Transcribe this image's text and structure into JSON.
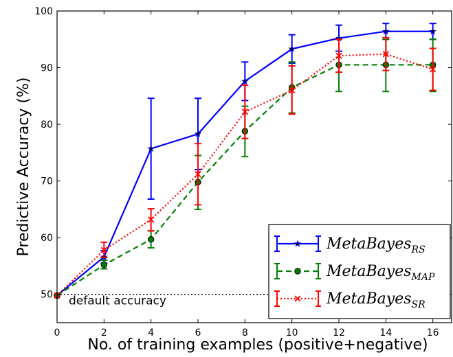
{
  "chart_data": {
    "type": "line",
    "xlabel": "No. of training examples (positive+negative)",
    "ylabel": "Predictive Accuracy (%)",
    "xlim": [
      0,
      16.8
    ],
    "ylim": [
      45,
      100
    ],
    "xticks": [
      0,
      2,
      4,
      6,
      8,
      10,
      12,
      14,
      16
    ],
    "yticks": [
      50,
      60,
      70,
      80,
      90,
      100
    ],
    "grid": false,
    "legend_position": "lower-right",
    "x": [
      0,
      2,
      4,
      6,
      8,
      10,
      12,
      14,
      16
    ],
    "series": [
      {
        "name_main": "MetaBayes",
        "name_sub": "RS",
        "color": "#0000ff",
        "style": "solid",
        "marker": "star",
        "values": [
          49.8,
          56.6,
          75.7,
          78.3,
          87.6,
          93.3,
          95.2,
          96.4,
          96.4
        ],
        "err_low": [
          49.8,
          55.5,
          66.8,
          72.0,
          84.2,
          90.8,
          92.9,
          95.0,
          95.0
        ],
        "err_high": [
          49.8,
          57.7,
          84.6,
          84.6,
          91.0,
          95.8,
          97.5,
          97.8,
          97.8
        ]
      },
      {
        "name_main": "MetaBayes",
        "name_sub": "MAP",
        "color": "#008000",
        "style": "dashed",
        "marker": "circle",
        "values": [
          49.8,
          55.2,
          59.7,
          69.8,
          78.8,
          86.5,
          90.5,
          90.5,
          90.5
        ],
        "err_low": [
          49.8,
          54.5,
          58.2,
          65.0,
          74.3,
          82.0,
          85.8,
          85.8,
          85.8
        ],
        "err_high": [
          49.8,
          56.0,
          61.2,
          74.5,
          83.2,
          91.0,
          95.0,
          95.0,
          95.0
        ]
      },
      {
        "name_main": "MetaBayes",
        "name_sub": "SR",
        "color": "#ff0000",
        "style": "dotted",
        "marker": "x",
        "values": [
          49.8,
          57.8,
          63.2,
          71.2,
          82.2,
          86.0,
          92.1,
          92.4,
          89.7
        ],
        "err_low": [
          49.8,
          56.5,
          61.2,
          65.8,
          77.5,
          81.8,
          89.2,
          89.5,
          86.0
        ],
        "err_high": [
          49.8,
          59.2,
          65.1,
          76.6,
          86.9,
          90.3,
          95.0,
          95.3,
          93.4
        ]
      }
    ],
    "reference_line": {
      "y": 50,
      "label": "default accuracy",
      "style": "dotted",
      "color": "#000000"
    }
  }
}
